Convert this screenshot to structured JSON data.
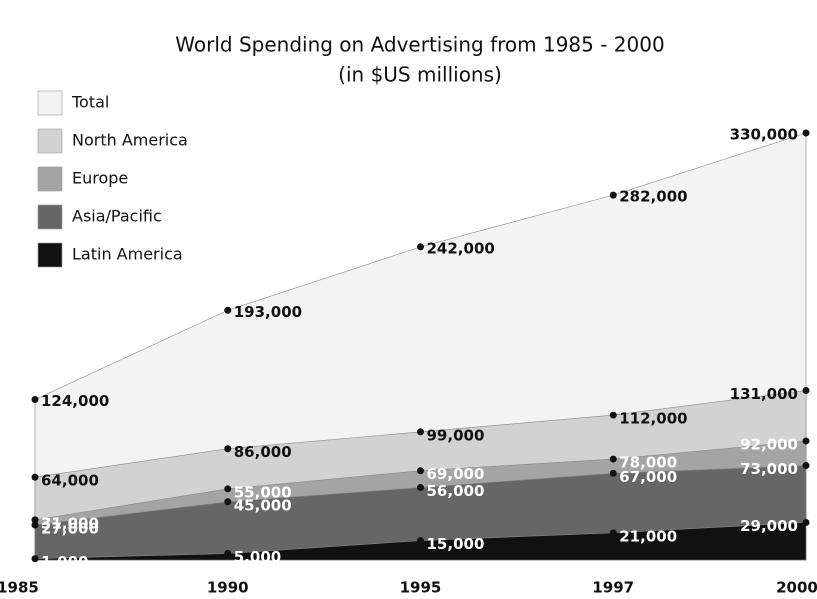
{
  "chart_data": {
    "type": "area",
    "title": "World Spending on Advertising from 1985 - 2000",
    "subtitle": "(in $US millions)",
    "categories": [
      "1985",
      "1990",
      "1995",
      "1997",
      "2000"
    ],
    "ylim": [
      0,
      330000
    ],
    "legend": "upper left",
    "series": [
      {
        "name": "Total",
        "color": "#f3f3f3",
        "values": [
          124000,
          193000,
          242000,
          282000,
          330000
        ],
        "value_labels": [
          "124,000",
          "193,000",
          "242,000",
          "282,000",
          "330,000"
        ]
      },
      {
        "name": "North America",
        "color": "#d2d2d2",
        "values": [
          64000,
          86000,
          99000,
          112000,
          131000
        ],
        "value_labels": [
          "64,000",
          "86,000",
          "99,000",
          "112,000",
          "131,000"
        ]
      },
      {
        "name": "Europe",
        "color": "#a4a4a4",
        "values": [
          31000,
          55000,
          69000,
          78000,
          92000
        ],
        "value_labels": [
          "31,000",
          "55,000",
          "69,000",
          "78,000",
          "92,000"
        ]
      },
      {
        "name": "Asia/Pacific",
        "color": "#666666",
        "values": [
          27000,
          45000,
          56000,
          67000,
          73000
        ],
        "value_labels": [
          "27,000",
          "45,000",
          "56,000",
          "67,000",
          "73,000"
        ]
      },
      {
        "name": "Latin America",
        "color": "#111111",
        "values": [
          1000,
          5000,
          15000,
          21000,
          29000
        ],
        "value_labels": [
          "1,000",
          "5,000",
          "15,000",
          "21,000",
          "29,000"
        ]
      }
    ]
  }
}
